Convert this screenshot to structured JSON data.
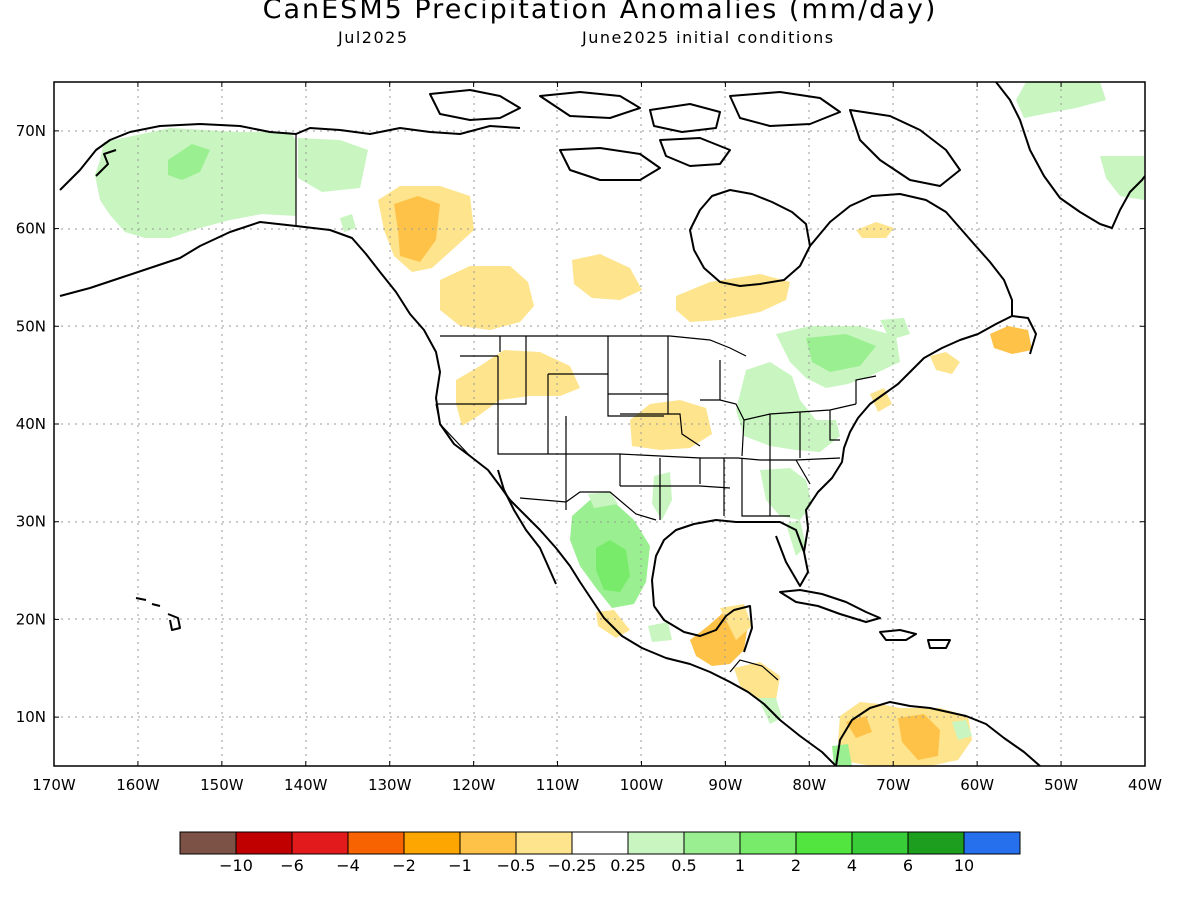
{
  "header": {
    "title": "CanESM5 Precipitation Anomalies (mm/day)",
    "valid_month": "Jul2025",
    "init": "June2025 initial conditions"
  },
  "map": {
    "lon_labels": [
      "170W",
      "160W",
      "150W",
      "140W",
      "130W",
      "120W",
      "110W",
      "100W",
      "90W",
      "80W",
      "70W",
      "60W",
      "50W",
      "40W"
    ],
    "lat_labels": [
      "10N",
      "20N",
      "30N",
      "40N",
      "50N",
      "60N",
      "70N"
    ],
    "lon_range": [
      -170,
      -40
    ],
    "lat_range": [
      5,
      75
    ],
    "grid": "dotted"
  },
  "colorbar": {
    "colors": [
      "#7c5246",
      "#c00000",
      "#e31a1c",
      "#f76300",
      "#fda500",
      "#fec248",
      "#fee48d",
      "#ffffff",
      "#c8f5c0",
      "#9aef91",
      "#78eb6a",
      "#52e540",
      "#38cc38",
      "#1e9e1e",
      "#2670ee"
    ],
    "labels": [
      "−10",
      "−6",
      "−4",
      "−2",
      "−1",
      "−0.5",
      "−0.25",
      "0.25",
      "0.5",
      "1",
      "2",
      "4",
      "6",
      "10"
    ]
  },
  "chart_data": {
    "type": "heatmap",
    "title": "CanESM5 Precipitation Anomalies (mm/day)",
    "subtitle": "Jul2025  June2025 initial conditions",
    "xlim_lon": [
      -170,
      -40
    ],
    "ylim_lat": [
      5,
      75
    ],
    "regions": [
      {
        "area": "Alaska",
        "anomaly_range": [
          0.25,
          0.5
        ]
      },
      {
        "area": "Central Alaska core",
        "anomaly_range": [
          0.5,
          1
        ]
      },
      {
        "area": "Yukon",
        "anomaly_range": [
          0.25,
          0.5
        ]
      },
      {
        "area": "Northern British Columbia",
        "anomaly_range": [
          -0.5,
          -0.25
        ]
      },
      {
        "area": "Northern British Columbia core",
        "anomaly_range": [
          -1,
          -0.5
        ]
      },
      {
        "area": "Southern British Columbia / Alberta",
        "anomaly_range": [
          -0.5,
          -0.25
        ]
      },
      {
        "area": "Saskatchewan / Manitoba",
        "anomaly_range": [
          -0.5,
          -0.25
        ]
      },
      {
        "area": "Northern Ontario",
        "anomaly_range": [
          -0.5,
          -0.25
        ]
      },
      {
        "area": "Idaho / Oregon / Wyoming",
        "anomaly_range": [
          -0.5,
          -0.25
        ]
      },
      {
        "area": "Kansas / Missouri",
        "anomaly_range": [
          -0.5,
          -0.25
        ]
      },
      {
        "area": "Great Lakes / Ontario / Quebec",
        "anomaly_range": [
          0.25,
          0.5
        ]
      },
      {
        "area": "Ohio Valley / Mid-Atlantic",
        "anomaly_range": [
          0.25,
          0.5
        ]
      },
      {
        "area": "Southeast US",
        "anomaly_range": [
          0.25,
          0.5
        ]
      },
      {
        "area": "Northwest Mexico (Sierra Madre Occidental)",
        "anomaly_range": [
          0.5,
          2
        ]
      },
      {
        "area": "Mexico core",
        "anomaly_range": [
          1,
          2
        ]
      },
      {
        "area": "Yucatan / Central America",
        "anomaly_range": [
          -1,
          -0.25
        ]
      },
      {
        "area": "Northern South America",
        "anomaly_range": [
          -1,
          -0.25
        ]
      },
      {
        "area": "Newfoundland",
        "anomaly_range": [
          -1,
          -0.25
        ]
      },
      {
        "area": "Greenland coasts",
        "anomaly_range": [
          0.25,
          0.5
        ]
      }
    ]
  }
}
